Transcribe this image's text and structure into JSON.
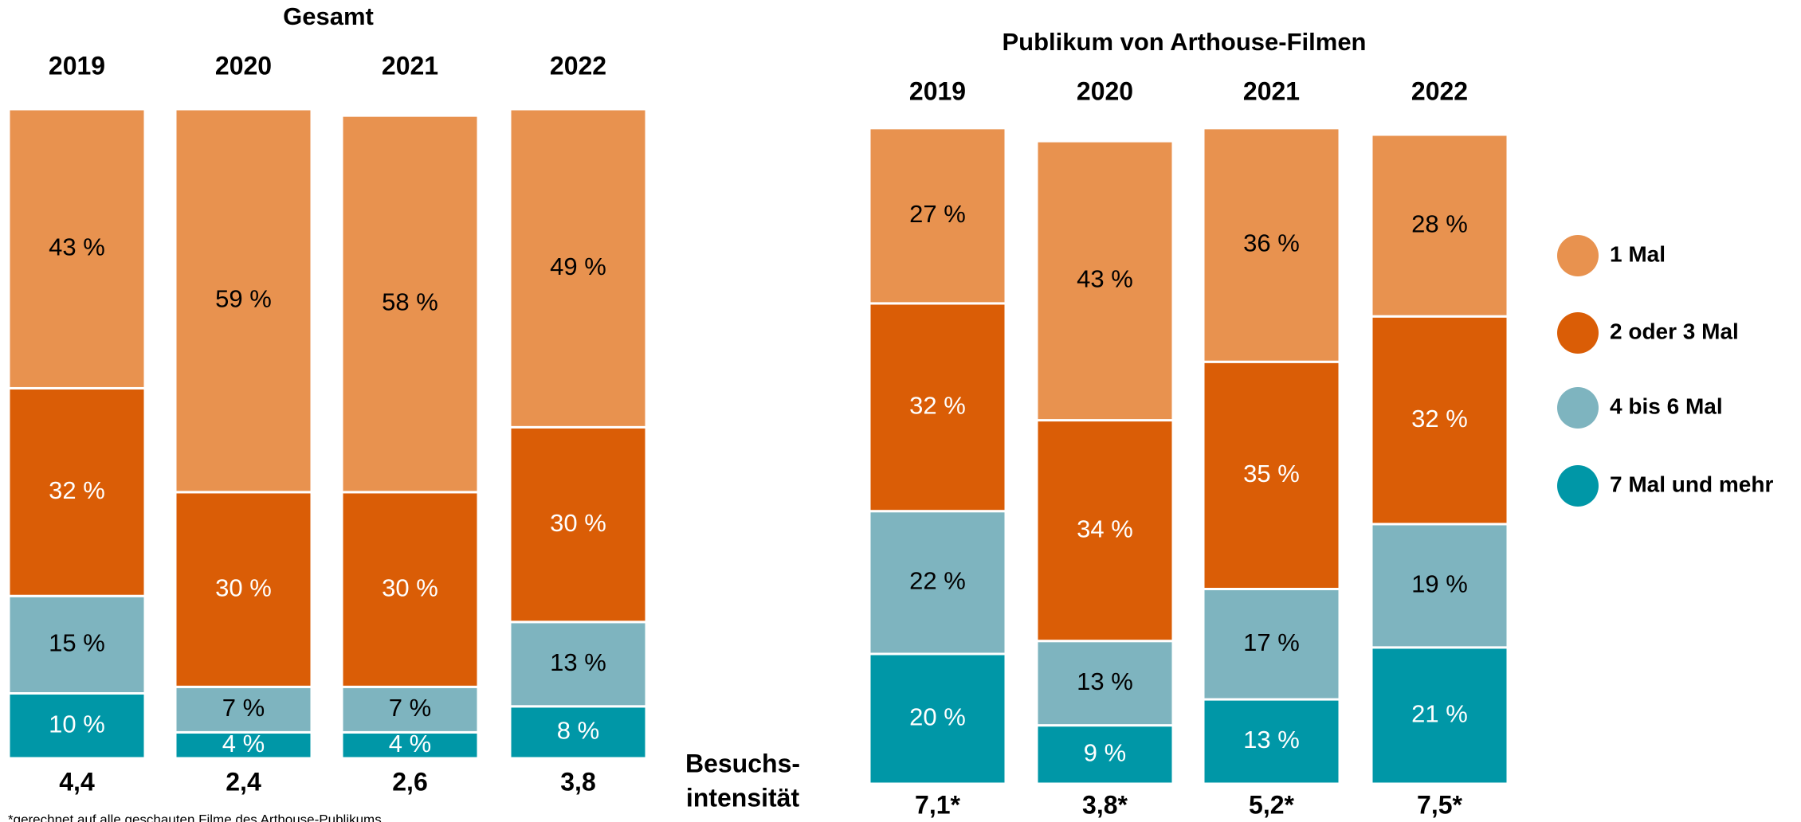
{
  "chart_data": [
    {
      "type": "bar",
      "stacked": true,
      "title": "Gesamt",
      "categories": [
        "2019",
        "2020",
        "2021",
        "2022"
      ],
      "series": [
        {
          "color": "#e8924f",
          "label_color": "#000000",
          "values": [
            43,
            59,
            58,
            49
          ],
          "value_labels": [
            "43 %",
            "59 %",
            "58 %",
            "49 %"
          ]
        },
        {
          "color": "#da5d06",
          "label_color": "#ffffff",
          "values": [
            32,
            30,
            30,
            30
          ],
          "value_labels": [
            "32 %",
            "30 %",
            "30 %",
            "30 %"
          ]
        },
        {
          "color": "#7eb4bf",
          "label_color": "#000000",
          "values": [
            15,
            7,
            7,
            13
          ],
          "value_labels": [
            "15 %",
            "7 %",
            "7 %",
            "13 %"
          ]
        },
        {
          "color": "#0097a7",
          "label_color": "#ffffff",
          "values": [
            10,
            4,
            4,
            8
          ],
          "value_labels": [
            "10 %",
            "4 %",
            "4 %",
            "8 %"
          ]
        }
      ],
      "bar_labels": [
        "4,4",
        "2,4",
        "2,6",
        "3,8"
      ],
      "annotation": [
        "Besuchs-",
        "intensität"
      ]
    },
    {
      "type": "bar",
      "stacked": true,
      "title": "Publikum von Arthouse-Filmen",
      "categories": [
        "2019",
        "2020",
        "2021",
        "2022"
      ],
      "series": [
        {
          "name": "1 Mal",
          "color": "#e8924f",
          "label_color": "#000000",
          "values": [
            27,
            43,
            36,
            28
          ],
          "value_labels": [
            "27 %",
            "43 %",
            "36 %",
            "28 %"
          ]
        },
        {
          "name": "2 oder 3 Mal",
          "color": "#da5d06",
          "label_color": "#ffffff",
          "values": [
            32,
            34,
            35,
            32
          ],
          "value_labels": [
            "32 %",
            "34 %",
            "35 %",
            "32 %"
          ]
        },
        {
          "name": "4 bis 6 Mal",
          "color": "#7eb4bf",
          "label_color": "#000000",
          "values": [
            22,
            13,
            17,
            19
          ],
          "value_labels": [
            "22 %",
            "13 %",
            "17 %",
            "19 %"
          ]
        },
        {
          "name": "7 Mal und mehr",
          "color": "#0097a7",
          "label_color": "#ffffff",
          "values": [
            20,
            9,
            13,
            21
          ],
          "value_labels": [
            "20 %",
            "9 %",
            "13 %",
            "21 %"
          ]
        }
      ],
      "bar_labels": [
        "7,1*",
        "3,8*",
        "5,2*",
        "7,5*"
      ],
      "legend": "right"
    }
  ],
  "footnote": "*gerechnet auf alle geschauten Filme des Arthouse-Publikums"
}
